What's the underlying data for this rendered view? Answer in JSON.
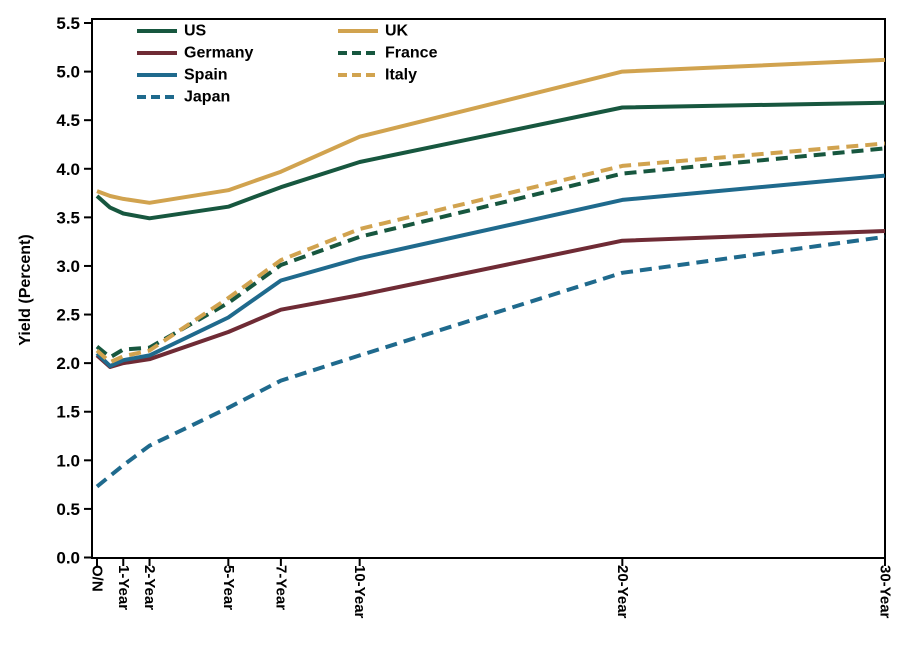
{
  "chart_data": {
    "type": "line",
    "title": "",
    "xlabel": "",
    "ylabel": "Yield (Percent)",
    "ylim": [
      0.0,
      5.5
    ],
    "ytick_step": 0.5,
    "y_tick_labels": [
      "0.0",
      "0.5",
      "1.0",
      "1.5",
      "2.0",
      "2.5",
      "3.0",
      "3.5",
      "4.0",
      "4.5",
      "5.0",
      "5.5"
    ],
    "x_unit": "maturity-years",
    "xlim_years": [
      0,
      30
    ],
    "grid": "off",
    "frame": "box",
    "x_categories": [
      {
        "label": "O/N",
        "years": 0
      },
      {
        "label": "1-Year",
        "years": 1
      },
      {
        "label": "2-Year",
        "years": 2
      },
      {
        "label": "5-Year",
        "years": 5
      },
      {
        "label": "7-Year",
        "years": 7
      },
      {
        "label": "10-Year",
        "years": 10
      },
      {
        "label": "20-Year",
        "years": 20
      },
      {
        "label": "30-Year",
        "years": 30
      }
    ],
    "x": [
      0,
      0.5,
      1,
      2,
      5,
      7,
      10,
      20,
      30
    ],
    "series": [
      {
        "name": "US",
        "color": "#17573F",
        "dash": "solid",
        "values": [
          3.72,
          3.6,
          3.54,
          3.49,
          3.61,
          3.81,
          4.07,
          4.63,
          4.68
        ]
      },
      {
        "name": "UK",
        "color": "#D1A34F",
        "dash": "solid",
        "values": [
          3.77,
          3.72,
          3.69,
          3.65,
          3.78,
          3.97,
          4.33,
          5.0,
          5.12
        ]
      },
      {
        "name": "Germany",
        "color": "#6F2B35",
        "dash": "solid",
        "values": [
          2.08,
          1.96,
          2.0,
          2.04,
          2.32,
          2.55,
          2.7,
          3.26,
          3.36
        ]
      },
      {
        "name": "France",
        "color": "#17573F",
        "dash": "dashed",
        "values": [
          2.17,
          2.06,
          2.14,
          2.16,
          2.62,
          3.01,
          3.3,
          3.95,
          4.21
        ]
      },
      {
        "name": "Spain",
        "color": "#1F6A8D",
        "dash": "solid",
        "values": [
          2.1,
          1.97,
          2.03,
          2.08,
          2.47,
          2.85,
          3.08,
          3.68,
          3.93
        ]
      },
      {
        "name": "Italy",
        "color": "#D1A34F",
        "dash": "dashed",
        "values": [
          2.13,
          2.01,
          2.07,
          2.13,
          2.67,
          3.06,
          3.38,
          4.03,
          4.26
        ]
      },
      {
        "name": "Japan",
        "color": "#1F6A8D",
        "dash": "dashed",
        "values": [
          0.73,
          0.84,
          0.95,
          1.15,
          1.54,
          1.82,
          2.08,
          2.93,
          3.3
        ]
      }
    ],
    "legend": {
      "position": "top-left-inside",
      "columns": [
        [
          "US",
          "Germany",
          "Spain",
          "Japan"
        ],
        [
          "UK",
          "France",
          "Italy"
        ]
      ]
    },
    "colors": {
      "axis": "#000000",
      "text": "#000000",
      "background": "#ffffff"
    }
  }
}
